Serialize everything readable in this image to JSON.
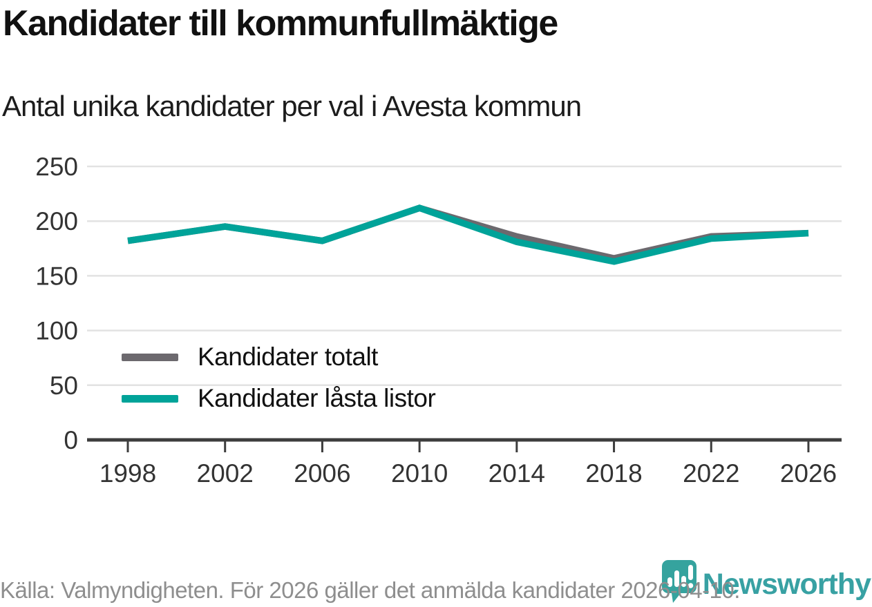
{
  "header": {
    "title": "Kandidater till kommunfullmäktige",
    "subtitle": "Antal unika kandidater per val i Avesta kommun"
  },
  "chart_data": {
    "type": "line",
    "title": "Kandidater till kommunfullmäktige",
    "subtitle": "Antal unika kandidater per val i Avesta kommun",
    "categories": [
      "1998",
      "2002",
      "2006",
      "2010",
      "2014",
      "2018",
      "2022",
      "2026"
    ],
    "series": [
      {
        "name": "Kandidater totalt",
        "color": "#6c696e",
        "values": [
          182,
          195,
          182,
          212,
          186,
          166,
          186,
          189
        ]
      },
      {
        "name": "Kandidater låsta listor",
        "color": "#00a399",
        "values": [
          182,
          195,
          182,
          212,
          181,
          163,
          184,
          189
        ]
      }
    ],
    "xlabel": "",
    "ylabel": "",
    "ylim": [
      0,
      250
    ],
    "yticks": [
      0,
      50,
      100,
      150,
      200,
      250
    ],
    "grid": "horizontal",
    "legend_position": "inside-left"
  },
  "colors": {
    "accent_teal": "#00a399",
    "series_gray": "#6c696e",
    "gridline": "#e2e2e2",
    "axis": "#3d3d3d",
    "brand_teal": "#38a1a3"
  },
  "footer": {
    "source": "Källa: Valmyndigheten. För 2026 gäller det anmälda kandidater 2026-04-10.",
    "brand": "Newsworthy"
  }
}
